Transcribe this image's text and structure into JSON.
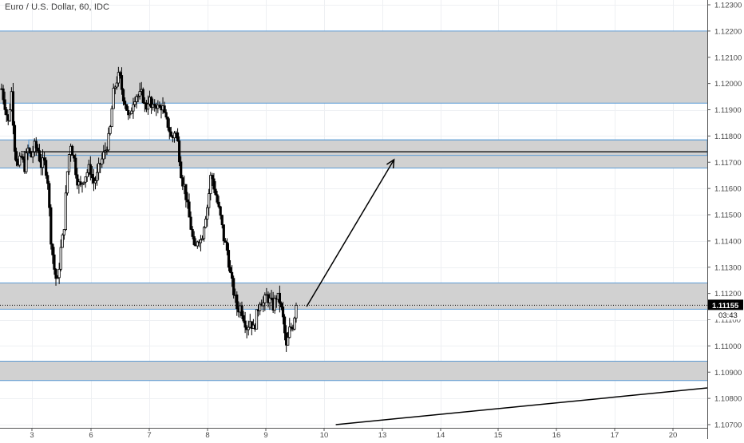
{
  "header": {
    "title": "Euro / U.S. Dollar, 60, IDC"
  },
  "price_scale": {
    "ticks": [
      "1.12300",
      "1.12200",
      "1.12100",
      "1.12000",
      "1.11900",
      "1.11800",
      "1.11700",
      "1.11600",
      "1.11500",
      "1.11400",
      "1.11300",
      "1.11200",
      "1.11100",
      "1.11000",
      "1.10900",
      "1.10800",
      "1.10700"
    ],
    "last_price_label": "1.11155",
    "countdown_label": "03:43"
  },
  "time_scale": {
    "ticks": [
      "3",
      "6",
      "7",
      "8",
      "9",
      "10",
      "13",
      "14",
      "15",
      "16",
      "17",
      "20"
    ]
  },
  "colors": {
    "candle": "#000000",
    "zone_fill": "#cfcfcf",
    "zone_border": "#5b9bd5",
    "grid": "#eef0f3",
    "axis_text": "#4a4a4a",
    "price_tag_bg": "#000000",
    "price_tag_text": "#ffffff"
  },
  "chart_data": {
    "type": "candlestick",
    "symbol": "Euro / U.S. Dollar",
    "interval": "60",
    "source": "IDC",
    "ylim": [
      1.1069,
      1.1232
    ],
    "x_day_ticks": [
      "3",
      "6",
      "7",
      "8",
      "9",
      "10",
      "13",
      "14",
      "15",
      "16",
      "17",
      "20"
    ],
    "last_price": 1.11155,
    "zones": [
      {
        "top": 1.122,
        "bottom": 1.11925
      },
      {
        "top": 1.11785,
        "bottom": 1.11678
      },
      {
        "top": 1.1124,
        "bottom": 1.1114
      },
      {
        "top": 1.10942,
        "bottom": 1.10868
      }
    ],
    "horizontal_lines": [
      {
        "price": 1.1174
      }
    ],
    "trend_lines": [
      {
        "from": [
          "9.7",
          1.1115
        ],
        "to": [
          "13.2",
          1.1171
        ],
        "arrow": true
      },
      {
        "from": [
          "10.2",
          1.107
        ],
        "to": [
          "20.6",
          1.1084
        ],
        "arrow": false
      }
    ],
    "price_path": [
      1.1198,
      1.1192,
      1.1185,
      1.1197,
      1.1176,
      1.1168,
      1.1172,
      1.1168,
      1.1175,
      1.1172,
      1.1176,
      1.1175,
      1.1169,
      1.117,
      1.1165,
      1.1142,
      1.113,
      1.1123,
      1.1136,
      1.1144,
      1.1165,
      1.1178,
      1.1172,
      1.1164,
      1.116,
      1.1164,
      1.1166,
      1.1168,
      1.1162,
      1.1164,
      1.1169,
      1.1172,
      1.1176,
      1.118,
      1.1195,
      1.1201,
      1.1203,
      1.1196,
      1.1192,
      1.1185,
      1.1193,
      1.1196,
      1.1195,
      1.1196,
      1.119,
      1.1195,
      1.1189,
      1.1193,
      1.119,
      1.1192,
      1.1186,
      1.1184,
      1.1178,
      1.1183,
      1.1176,
      1.1164,
      1.116,
      1.1151,
      1.1144,
      1.1135,
      1.1142,
      1.114,
      1.1148,
      1.1154,
      1.1166,
      1.116,
      1.1154,
      1.1148,
      1.114,
      1.1136,
      1.1126,
      1.112,
      1.1114,
      1.1115,
      1.1111,
      1.1107,
      1.111,
      1.1106,
      1.1112,
      1.1118,
      1.1116,
      1.1119,
      1.1117,
      1.1115,
      1.1119,
      1.1117,
      1.111,
      1.1099,
      1.1106,
      1.1108,
      1.11155
    ]
  }
}
